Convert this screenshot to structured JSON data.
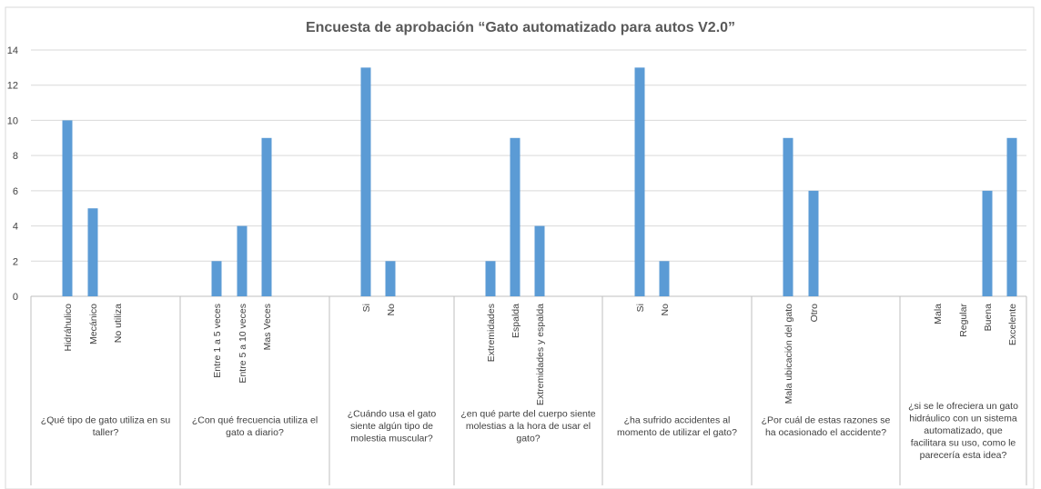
{
  "chart_data": {
    "type": "bar",
    "title": "Encuesta de aprobación “Gato automatizado para autos V2.0”",
    "ylim": [
      0,
      14
    ],
    "yticks": [
      "0",
      "2",
      "4",
      "6",
      "8",
      "10",
      "12",
      "14"
    ],
    "grid": true,
    "bar_color": "#5b9bd5",
    "groups": [
      {
        "question": "¿Qué tipo de gato utiliza en su taller?",
        "categories": [
          "Hidráhulico",
          "Mecánico",
          "No utiliza"
        ],
        "values": [
          10,
          5,
          0
        ]
      },
      {
        "question": "¿Con qué frecuencia utiliza el gato a diario?",
        "categories": [
          "Entre 1 a 5 veces",
          "Entre 5 a 10 veces",
          "Mas Veces"
        ],
        "values": [
          2,
          4,
          9
        ]
      },
      {
        "question": "¿Cuándo usa el gato siente algún tipo de molestia muscular?",
        "categories": [
          "Si",
          "No"
        ],
        "values": [
          13,
          2
        ]
      },
      {
        "question": "¿en qué parte del cuerpo siente molestias a la hora de usar el gato?",
        "categories": [
          "Extremidades",
          "Espalda",
          "Extremidades y espalda"
        ],
        "values": [
          2,
          9,
          4
        ]
      },
      {
        "question": "¿ha sufrido accidentes al momento de utilizar el gato?",
        "categories": [
          "Si",
          "No"
        ],
        "values": [
          13,
          2
        ]
      },
      {
        "question": "¿Por cuál de estas razones se ha ocasionado el accidente?",
        "categories": [
          "Mala ubicación del gato",
          "Otro"
        ],
        "values": [
          9,
          6
        ]
      },
      {
        "question": "¿si se le ofreciera un gato hidráulico con un sistema automatizado, que facilitara su uso, como le parecería esta idea?",
        "categories": [
          "Mala",
          "Regular",
          "Buena",
          "Excelente"
        ],
        "values": [
          0,
          0,
          6,
          9
        ]
      }
    ]
  }
}
